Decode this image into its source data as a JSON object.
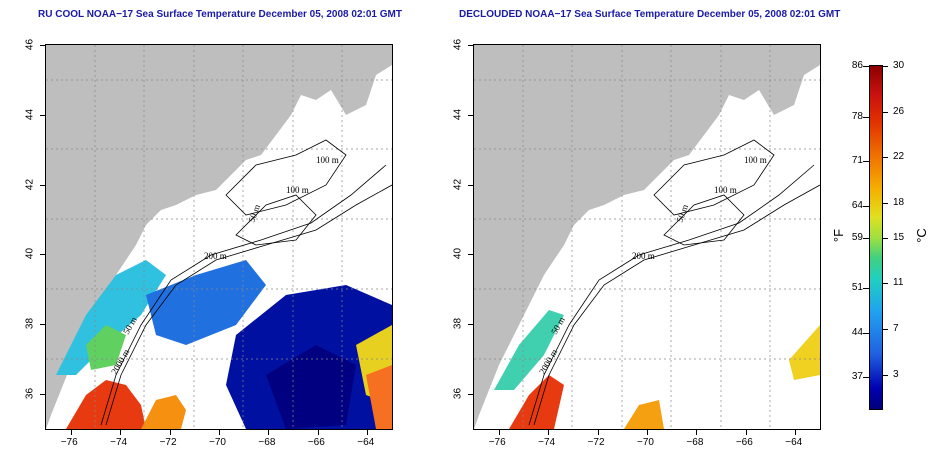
{
  "panels": [
    {
      "title": "RU COOL NOAA−17 Sea Surface Temperature December 05, 2008 02:01 GMT",
      "contour_labels": [
        "100 m",
        "100 m",
        "50 m",
        "200 m",
        "50 m",
        "2000 m"
      ]
    },
    {
      "title": "DECLOUDED NOAA−17 Sea Surface Temperature December 05, 2008 02:01 GMT",
      "contour_labels": [
        "100 m",
        "100 m",
        "50 m",
        "200 m",
        "50 m",
        "2000 m"
      ]
    }
  ],
  "axes": {
    "x_ticks": [
      "−76",
      "−74",
      "−72",
      "−70",
      "−68",
      "−66",
      "−64"
    ],
    "x_values": [
      -76,
      -74,
      -72,
      -70,
      -68,
      -66,
      -64
    ],
    "y_ticks": [
      "36",
      "38",
      "40",
      "42",
      "44",
      "46"
    ],
    "y_values": [
      36,
      38,
      40,
      42,
      44,
      46
    ],
    "x_range": [
      -77.0,
      -63.0
    ],
    "y_range": [
      35.0,
      46.0
    ],
    "grid": "dotted"
  },
  "colorbar": {
    "fahrenheit_ticks": [
      "86",
      "78",
      "71",
      "64",
      "59",
      "51",
      "44",
      "37"
    ],
    "fahrenheit_values": [
      86,
      78,
      71,
      64,
      59,
      51,
      44,
      37
    ],
    "celsius_ticks": [
      "30",
      "26",
      "22",
      "18",
      "15",
      "11",
      "7",
      "3"
    ],
    "celsius_values": [
      30,
      26,
      22,
      18,
      15,
      11,
      7,
      3
    ],
    "range_c": [
      0,
      30
    ],
    "unit_left": "°F",
    "unit_right": "°C"
  },
  "colors": {
    "land": "#bebebe",
    "title": "#1a1aa6",
    "contour": "#000000"
  }
}
